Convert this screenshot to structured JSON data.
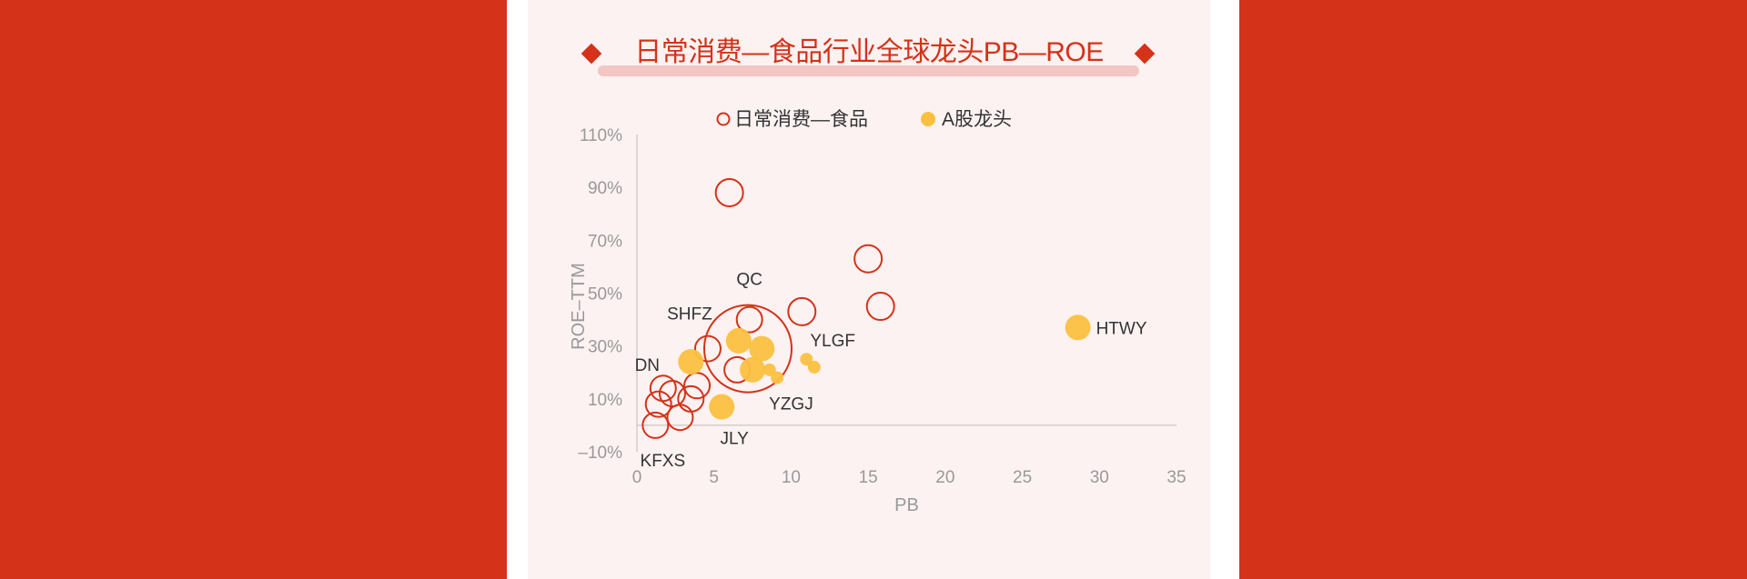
{
  "colors": {
    "background": "#d43219",
    "panel": "#fcf2f1",
    "accent": "#d43219",
    "a_share": "#fbc040",
    "axis_text": "#999999",
    "label_text": "#333333"
  },
  "chart_data": {
    "type": "scatter",
    "title": "日常消费—食品行业全球龙头PB—ROE",
    "xlabel": "PB",
    "ylabel": "ROE–TTM",
    "xlim": [
      0,
      35
    ],
    "ylim": [
      -10,
      110
    ],
    "x_ticks": [
      {
        "v": 0,
        "label": "0"
      },
      {
        "v": 5,
        "label": "5"
      },
      {
        "v": 10,
        "label": "10"
      },
      {
        "v": 15,
        "label": "15"
      },
      {
        "v": 20,
        "label": "20"
      },
      {
        "v": 25,
        "label": "25"
      },
      {
        "v": 30,
        "label": "30"
      },
      {
        "v": 35,
        "label": "35"
      }
    ],
    "y_ticks": [
      {
        "v": -10,
        "label": "–10%"
      },
      {
        "v": 10,
        "label": "10%"
      },
      {
        "v": 30,
        "label": "30%"
      },
      {
        "v": 50,
        "label": "50%"
      },
      {
        "v": 70,
        "label": "70%"
      },
      {
        "v": 90,
        "label": "90%"
      },
      {
        "v": 110,
        "label": "110%"
      }
    ],
    "grid": false,
    "legend_position": "top",
    "series": [
      {
        "name": "日常消费—食品",
        "style": "hollow",
        "points": [
          {
            "x": 6.0,
            "y": 88,
            "size": 15,
            "label": ""
          },
          {
            "x": 15.0,
            "y": 63,
            "size": 15,
            "label": ""
          },
          {
            "x": 15.8,
            "y": 45,
            "size": 15,
            "label": ""
          },
          {
            "x": 10.7,
            "y": 43,
            "size": 15,
            "label": ""
          },
          {
            "x": 7.3,
            "y": 40,
            "size": 14,
            "label": "QC"
          },
          {
            "x": 7.2,
            "y": 29,
            "size": 48,
            "label": ""
          },
          {
            "x": 4.6,
            "y": 29,
            "size": 14,
            "label": "SHFZ"
          },
          {
            "x": 6.5,
            "y": 21,
            "size": 14,
            "label": ""
          },
          {
            "x": 3.9,
            "y": 15,
            "size": 14,
            "label": ""
          },
          {
            "x": 3.5,
            "y": 10,
            "size": 14,
            "label": ""
          },
          {
            "x": 1.7,
            "y": 14,
            "size": 14,
            "label": ""
          },
          {
            "x": 2.3,
            "y": 12,
            "size": 14,
            "label": ""
          },
          {
            "x": 1.4,
            "y": 8,
            "size": 14,
            "label": ""
          },
          {
            "x": 2.8,
            "y": 3,
            "size": 14,
            "label": ""
          },
          {
            "x": 1.2,
            "y": 0,
            "size": 14,
            "label": "KFXS"
          }
        ]
      },
      {
        "name": "A股龙头",
        "style": "filled",
        "points": [
          {
            "x": 28.6,
            "y": 37,
            "size": 14,
            "label": "HTWY"
          },
          {
            "x": 6.6,
            "y": 32,
            "size": 14,
            "label": ""
          },
          {
            "x": 8.1,
            "y": 29,
            "size": 14,
            "label": ""
          },
          {
            "x": 7.5,
            "y": 21,
            "size": 14,
            "label": ""
          },
          {
            "x": 3.5,
            "y": 24,
            "size": 14,
            "label": "DN"
          },
          {
            "x": 8.6,
            "y": 21,
            "size": 7,
            "label": ""
          },
          {
            "x": 9.1,
            "y": 18,
            "size": 7,
            "label": ""
          },
          {
            "x": 11.0,
            "y": 25,
            "size": 7,
            "label": "YLGF"
          },
          {
            "x": 11.5,
            "y": 22,
            "size": 7,
            "label": ""
          },
          {
            "x": 5.5,
            "y": 7,
            "size": 14,
            "label": "JLY"
          }
        ]
      }
    ],
    "annotations": [
      {
        "text": "YZGJ",
        "x": 10.0,
        "y": 6
      }
    ]
  }
}
